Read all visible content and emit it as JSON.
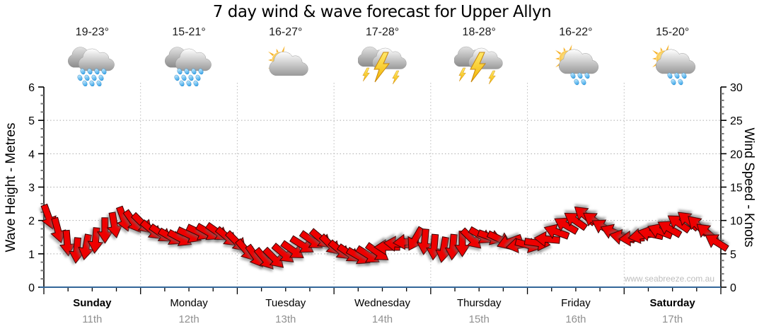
{
  "title": "7 day wind & wave forecast for Upper Allyn",
  "watermark": "www.seabreeze.com.au",
  "forecast": {
    "days": [
      {
        "name": "Sunday",
        "date": "11th",
        "temp": "19-23°",
        "icon": "rain",
        "bold": true
      },
      {
        "name": "Monday",
        "date": "12th",
        "temp": "15-21°",
        "icon": "rain",
        "bold": false
      },
      {
        "name": "Tuesday",
        "date": "13th",
        "temp": "16-27°",
        "icon": "partly-sunny",
        "bold": false
      },
      {
        "name": "Wednesday",
        "date": "14th",
        "temp": "17-28°",
        "icon": "storm",
        "bold": false
      },
      {
        "name": "Thursday",
        "date": "15th",
        "temp": "18-28°",
        "icon": "storm",
        "bold": false
      },
      {
        "name": "Friday",
        "date": "16th",
        "temp": "16-22°",
        "icon": "sun-shower",
        "bold": false
      },
      {
        "name": "Saturday",
        "date": "17th",
        "temp": "15-20°",
        "icon": "sun-shower",
        "bold": true
      }
    ]
  },
  "chart_data": {
    "type": "line",
    "title": "7 day wind & wave forecast for Upper Allyn",
    "x_categories": [
      "Sunday",
      "Monday",
      "Tuesday",
      "Wednesday",
      "Thursday",
      "Friday",
      "Saturday"
    ],
    "x_dates": [
      "11th",
      "12th",
      "13th",
      "14th",
      "15th",
      "16th",
      "17th"
    ],
    "left_axis": {
      "label": "Wave Height - Metres",
      "min": 0,
      "max": 6,
      "tick_step": 1,
      "minor_step": 0.25
    },
    "right_axis": {
      "label": "Wind Speed - Knots",
      "min": 0,
      "max": 30,
      "tick_step": 5,
      "minor_step": 1
    },
    "grid": "dotted horizontal at each metre, dotted vertical at day boundaries",
    "x_minor_tick_hours": 6,
    "series": [
      {
        "name": "Wind Speed",
        "unit": "knots",
        "render": "wind-arrows",
        "sample_interval_hours": 2.33,
        "values": [
          10.5,
          8.5,
          6.6,
          5.5,
          6.0,
          7.0,
          8.5,
          9.3,
          10.2,
          9.8,
          9.5,
          8.5,
          8.0,
          7.5,
          7.3,
          7.8,
          8.2,
          8.2,
          8.2,
          7.5,
          6.8,
          5.5,
          4.6,
          4.2,
          4.3,
          5.0,
          5.5,
          6.3,
          7.0,
          7.2,
          6.3,
          5.5,
          5.0,
          4.6,
          4.8,
          5.2,
          6.0,
          6.5,
          6.8,
          7.2,
          6.8,
          6.0,
          5.6,
          6.0,
          6.5,
          7.2,
          7.7,
          7.5,
          7.2,
          6.8,
          6.3,
          6.3,
          6.6,
          7.2,
          8.3,
          9.3,
          10.0,
          10.8,
          10.0,
          9.0,
          8.3,
          7.5,
          7.3,
          7.7,
          8.0,
          8.4,
          8.8,
          9.6,
          10.0,
          9.3,
          8.2,
          6.8
        ],
        "directions_deg_css": [
          70,
          75,
          85,
          95,
          100,
          95,
          90,
          80,
          70,
          55,
          45,
          40,
          35,
          30,
          28,
          25,
          25,
          30,
          35,
          40,
          45,
          50,
          55,
          50,
          45,
          40,
          35,
          32,
          35,
          40,
          45,
          40,
          35,
          30,
          32,
          35,
          180,
          185,
          175,
          120,
          95,
          95,
          100,
          95,
          90,
          45,
          30,
          20,
          25,
          160,
          170,
          15,
          8,
          -175,
          -160,
          -150,
          -145,
          -140,
          -145,
          -150,
          -158,
          -168,
          177,
          170,
          -168,
          -158,
          -150,
          -145,
          -140,
          -136,
          -140,
          -148
        ]
      },
      {
        "name": "Wave Height",
        "unit": "metres",
        "render": "line",
        "flat_value": 0
      }
    ],
    "colors": {
      "arrow_fill": "#EE0000",
      "arrow_outline": "#3a0000",
      "x_axis_line": "#336699",
      "grid_line": "#aaaaaa",
      "day_grid_line": "#bbbbbb",
      "minor_tick": "#777777",
      "date_text": "#909090",
      "watermark_text": "#bdbdbd",
      "cloud_light": "#ffffff",
      "cloud_dark": "#9a9a9a",
      "sun": "#f7b32b",
      "raindrop": "#35a3e8",
      "lightning": "#ffd83d"
    }
  }
}
